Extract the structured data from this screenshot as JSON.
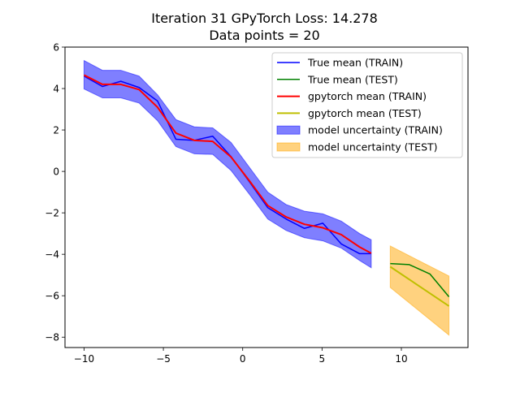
{
  "chart_data": {
    "type": "line",
    "title_lines": [
      "Iteration 31 GPyTorch Loss: 14.278",
      "Data points = 20"
    ],
    "xlim": [
      -11.2,
      14.2
    ],
    "ylim": [
      -8.5,
      6.0
    ],
    "xticks": [
      -10,
      -5,
      0,
      5,
      10
    ],
    "xtick_labels": [
      "−10",
      "−5",
      "0",
      "5",
      "10"
    ],
    "yticks": [
      -8,
      -6,
      -4,
      -2,
      0,
      2,
      4,
      6
    ],
    "ytick_labels": [
      "−8",
      "−6",
      "−4",
      "−2",
      "0",
      "2",
      "4",
      "6"
    ],
    "grid": false,
    "legend_position": "top-right",
    "series": [
      {
        "name": "True mean (TRAIN)",
        "kind": "line",
        "color": "#0000ff",
        "x": [
          -10.0,
          -8.84,
          -7.68,
          -6.53,
          -5.37,
          -4.21,
          -3.05,
          -1.89,
          -0.74,
          0.42,
          1.58,
          2.74,
          3.89,
          5.05,
          6.21,
          7.37,
          8.1
        ],
        "y": [
          4.6,
          4.1,
          4.35,
          4.05,
          3.4,
          1.55,
          1.5,
          1.7,
          0.72,
          -0.5,
          -1.75,
          -2.3,
          -2.75,
          -2.5,
          -3.5,
          -3.97,
          -3.97
        ]
      },
      {
        "name": "True mean (TEST)",
        "kind": "line",
        "color": "#008000",
        "x": [
          9.3,
          10.5,
          11.8,
          13.0
        ],
        "y": [
          -4.45,
          -4.5,
          -4.95,
          -6.05
        ]
      },
      {
        "name": "gpytorch mean (TRAIN)",
        "kind": "line",
        "color": "#ff0000",
        "x": [
          -10.0,
          -8.84,
          -7.68,
          -6.53,
          -5.37,
          -4.21,
          -3.05,
          -1.89,
          -0.74,
          0.42,
          1.58,
          2.74,
          3.89,
          5.05,
          6.21,
          7.37,
          8.1
        ],
        "y": [
          4.65,
          4.2,
          4.2,
          3.95,
          3.1,
          1.85,
          1.5,
          1.45,
          0.7,
          -0.45,
          -1.65,
          -2.2,
          -2.55,
          -2.72,
          -3.05,
          -3.65,
          -3.95
        ]
      },
      {
        "name": "gpytorch mean (TEST)",
        "kind": "line",
        "color": "#bfbf00",
        "x": [
          9.3,
          13.0
        ],
        "y": [
          -4.6,
          -6.5
        ]
      },
      {
        "name": "model uncertainty (TRAIN)",
        "kind": "band",
        "color": "#0000ff",
        "opacity": 0.5,
        "x": [
          -10.0,
          -8.84,
          -7.68,
          -6.53,
          -5.37,
          -4.21,
          -3.05,
          -1.89,
          -0.74,
          0.42,
          1.58,
          2.74,
          3.89,
          5.05,
          6.21,
          7.37,
          8.1
        ],
        "lower": [
          3.98,
          3.55,
          3.55,
          3.3,
          2.45,
          1.2,
          0.85,
          0.82,
          0.05,
          -1.1,
          -2.3,
          -2.85,
          -3.2,
          -3.35,
          -3.7,
          -4.3,
          -4.65
        ],
        "upper": [
          5.35,
          4.88,
          4.88,
          4.6,
          3.7,
          2.5,
          2.15,
          2.1,
          1.4,
          0.2,
          -1.0,
          -1.6,
          -1.92,
          -2.05,
          -2.4,
          -3.0,
          -3.3
        ]
      },
      {
        "name": "model  uncertainty (TEST)",
        "kind": "band",
        "color": "#ffa500",
        "opacity": 0.5,
        "x": [
          9.3,
          13.0
        ],
        "lower": [
          -5.6,
          -7.9
        ],
        "upper": [
          -3.6,
          -5.05
        ]
      }
    ]
  }
}
